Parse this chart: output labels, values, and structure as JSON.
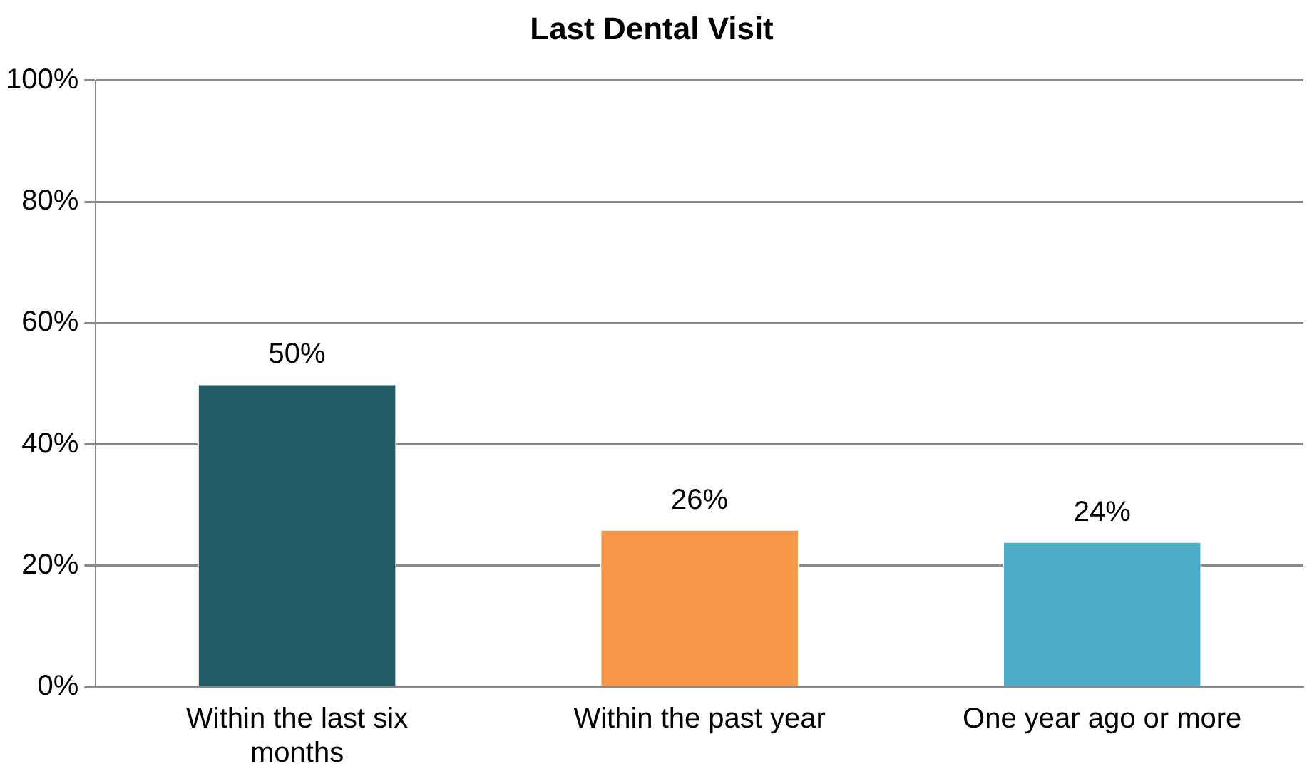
{
  "chart_data": {
    "type": "bar",
    "title": "Last Dental Visit",
    "categories": [
      "Within the last six months",
      "Within the past year",
      "One year ago or more"
    ],
    "values": [
      50,
      26,
      24
    ],
    "colors": [
      "#235a67",
      "#f79646",
      "#4bacc6"
    ],
    "value_labels": [
      "50%",
      "26%",
      "24%"
    ],
    "ylim": [
      0,
      100
    ],
    "yticks": [
      {
        "value": 0,
        "label": "0%"
      },
      {
        "value": 20,
        "label": "20%"
      },
      {
        "value": 40,
        "label": "40%"
      },
      {
        "value": 60,
        "label": "60%"
      },
      {
        "value": 80,
        "label": "80%"
      },
      {
        "value": 100,
        "label": "100%"
      }
    ],
    "grid": "y",
    "legend": false
  }
}
